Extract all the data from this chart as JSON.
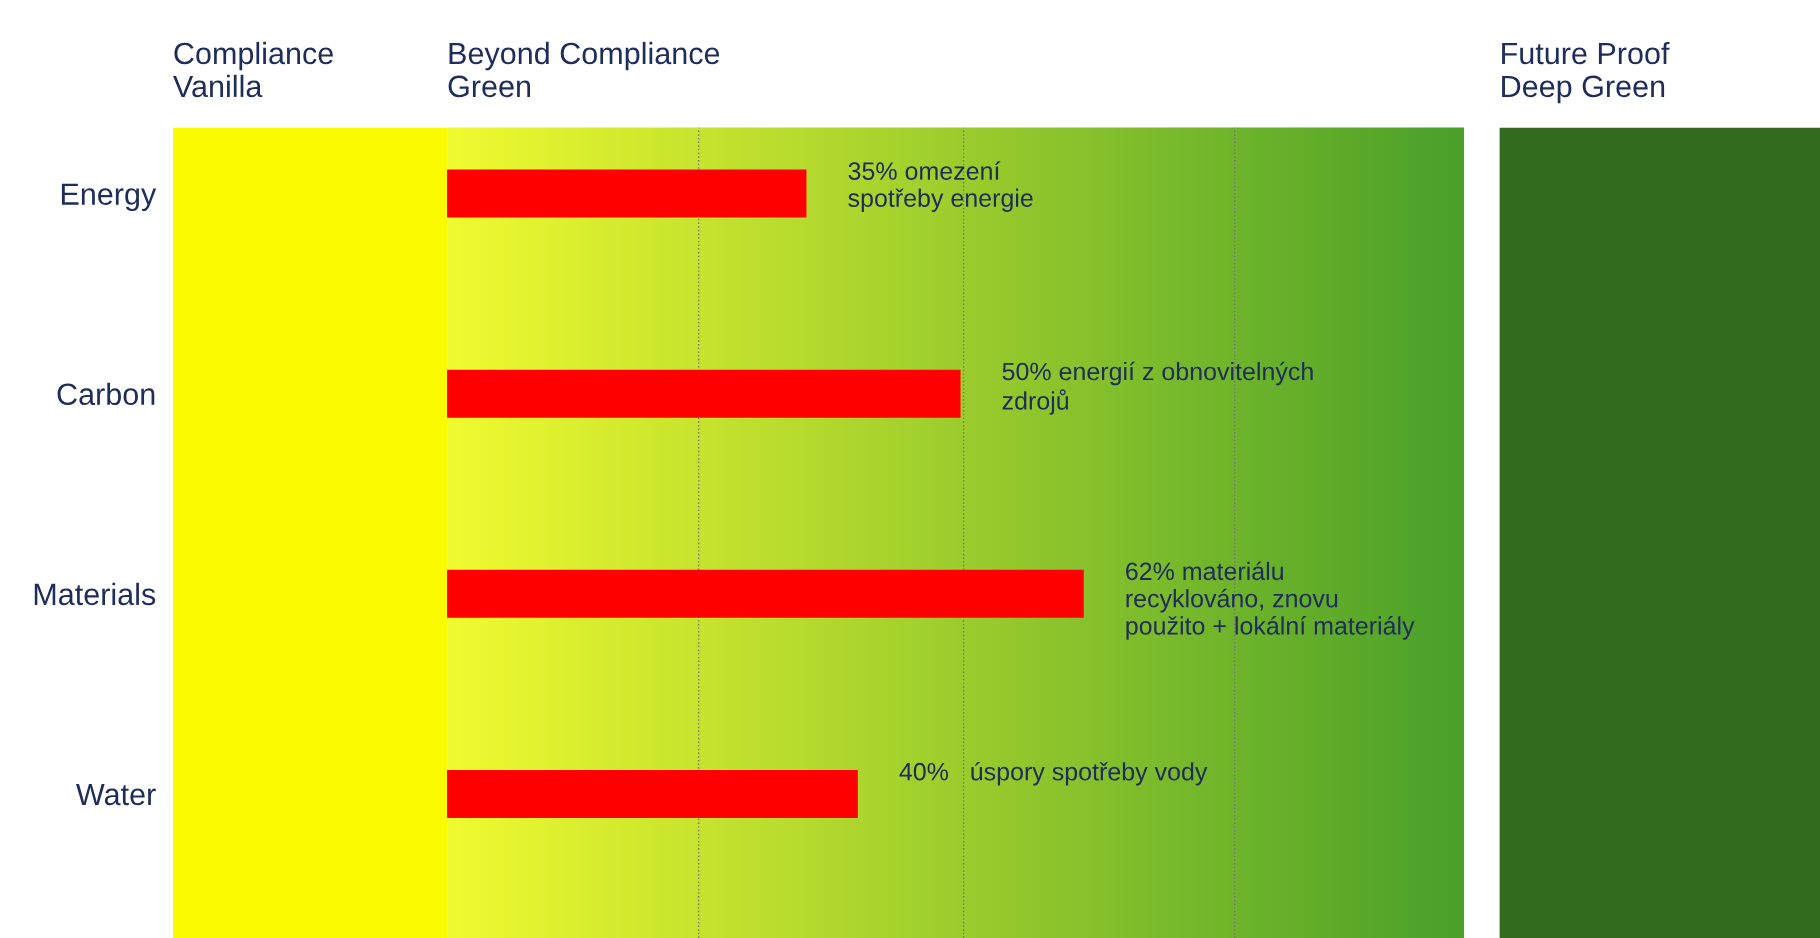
{
  "chart_data": {
    "type": "bar",
    "orientation": "horizontal",
    "categories": [
      "Energy",
      "Carbon",
      "Materials",
      "Water"
    ],
    "values": [
      35,
      50,
      62,
      40
    ],
    "color": "#ff0000",
    "value_labels": [
      "35% omezení\nspotřeby energie",
      "50% energií z obnovitelných\nzdrojů",
      "62% materiálu\nrecyklováno, znovu\npoužito + lokální materiály",
      "40%   úspory spotřeby vody"
    ],
    "xlim": [
      -26.7,
      133.7
    ],
    "tick_labels": "y",
    "grid": false,
    "legend": false,
    "bands": [
      {
        "axis": "x",
        "from": -26.7,
        "to": 0,
        "label": "Compliance\nVanilla",
        "color": "#fafa00"
      },
      {
        "axis": "x",
        "from": 0,
        "to": 99,
        "label": "Beyond Compliance\nGreen",
        "color": [
          "#f0fa30",
          "#4aa02a"
        ]
      },
      {
        "axis": "x",
        "from": 102.5,
        "to": 133.7,
        "label": "Future Proof\nDeep Green",
        "color": "#336b1e"
      }
    ],
    "ref_lines": [
      {
        "axis": "x",
        "value": 24.5,
        "color": "#777777",
        "line_style": "dotted"
      },
      {
        "axis": "x",
        "value": 50.3,
        "color": "#777777",
        "line_style": "dotted"
      },
      {
        "axis": "x",
        "value": 76.7,
        "color": "#777777",
        "line_style": "dotted"
      }
    ]
  }
}
